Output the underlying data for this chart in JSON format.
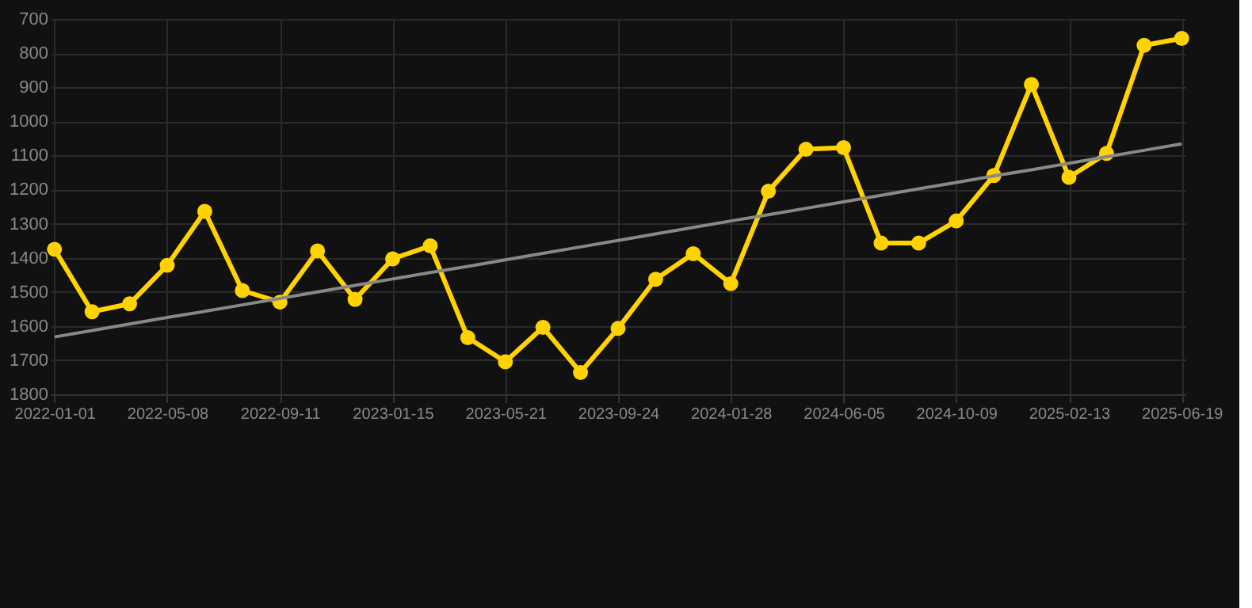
{
  "chart_data": {
    "type": "line",
    "categories": [
      "2022-01-01",
      null,
      null,
      "2022-05-08",
      null,
      null,
      "2022-09-11",
      null,
      null,
      "2023-01-15",
      null,
      null,
      "2023-05-21",
      null,
      null,
      "2023-09-24",
      null,
      null,
      "2024-01-28",
      null,
      null,
      "2024-06-05",
      null,
      null,
      "2024-10-09",
      null,
      null,
      "2025-02-13",
      null,
      null,
      "2025-06-19"
    ],
    "series": [
      {
        "color": "#ffd200",
        "marker": "circle",
        "values": [
          1375,
          1558,
          1535,
          1422,
          1264,
          1496,
          1530,
          1380,
          1522,
          1403,
          1365,
          1634,
          1705,
          1604,
          1736,
          1607,
          1463,
          1388,
          1476,
          1205,
          1082,
          1077,
          1357,
          1357,
          1292,
          1159,
          892,
          1164,
          1094,
          777,
          757
        ]
      },
      {
        "type": "line",
        "color": "#888888",
        "marker": "none",
        "values": [
          1632,
          1613,
          1594,
          1575,
          1557,
          1538,
          1519,
          1500,
          1481,
          1462,
          1443,
          1425,
          1406,
          1387,
          1368,
          1349,
          1330,
          1311,
          1292,
          1274,
          1255,
          1236,
          1217,
          1198,
          1179,
          1160,
          1142,
          1123,
          1104,
          1085,
          1066
        ]
      }
    ],
    "ylim": [
      1800,
      700
    ],
    "yticks": [
      700,
      800,
      900,
      1000,
      1100,
      1200,
      1300,
      1400,
      1500,
      1600,
      1700,
      1800
    ],
    "grid": true
  }
}
